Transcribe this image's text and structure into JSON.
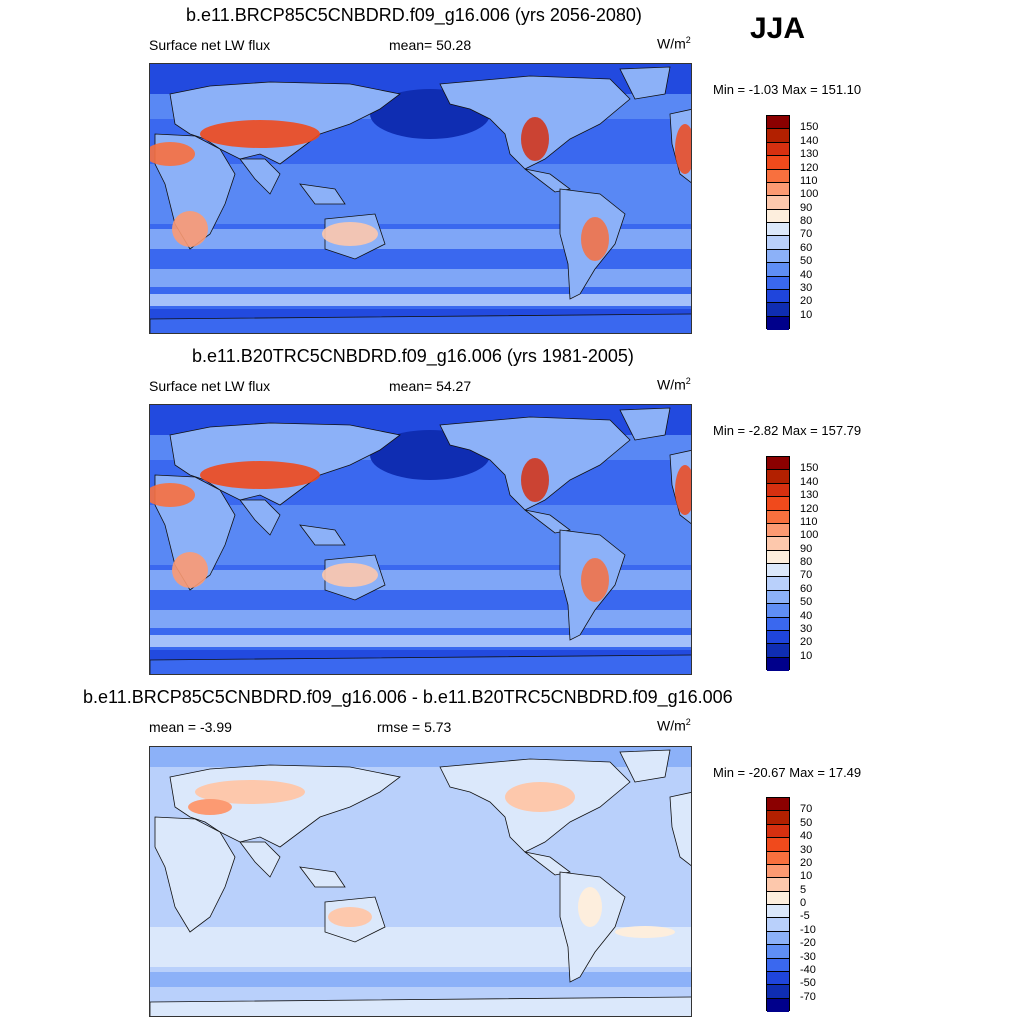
{
  "season": "JJA",
  "panels": [
    {
      "title": "b.e11.BRCP85C5CNBDRD.f09_g16.006 (yrs 2056-2080)",
      "variable": "Surface net LW flux",
      "mean": "mean=  50.28",
      "units": "W/m",
      "units_sup": "2",
      "minmax": "Min =  -1.03 Max = 151.10",
      "colorbar": {
        "labels": [
          "150",
          "140",
          "130",
          "120",
          "110",
          "100",
          "90",
          "80",
          "70",
          "60",
          "50",
          "40",
          "30",
          "20",
          "10"
        ],
        "colors": [
          "#8b0000",
          "#b22000",
          "#d63010",
          "#f04a1c",
          "#f8703e",
          "#fc9a72",
          "#fdc8ac",
          "#fdeedd",
          "#dbe8fb",
          "#b9d0fb",
          "#8cb1f8",
          "#5f8ef5",
          "#3a68ef",
          "#1f45dc",
          "#0f2db2",
          "#00008b"
        ]
      },
      "map_style": "abs"
    },
    {
      "title": "b.e11.B20TRC5CNBDRD.f09_g16.006 (yrs 1981-2005)",
      "variable": "Surface net LW flux",
      "mean": "mean=  54.27",
      "units": "W/m",
      "units_sup": "2",
      "minmax": "Min =  -2.82 Max = 157.79",
      "colorbar": {
        "labels": [
          "150",
          "140",
          "130",
          "120",
          "110",
          "100",
          "90",
          "80",
          "70",
          "60",
          "50",
          "40",
          "30",
          "20",
          "10"
        ],
        "colors": [
          "#8b0000",
          "#b22000",
          "#d63010",
          "#f04a1c",
          "#f8703e",
          "#fc9a72",
          "#fdc8ac",
          "#fdeedd",
          "#dbe8fb",
          "#b9d0fb",
          "#8cb1f8",
          "#5f8ef5",
          "#3a68ef",
          "#1f45dc",
          "#0f2db2",
          "#00008b"
        ]
      },
      "map_style": "abs"
    },
    {
      "title": "b.e11.BRCP85C5CNBDRD.f09_g16.006 - b.e11.B20TRC5CNBDRD.f09_g16.006",
      "mean": "mean =  -3.99",
      "rmse": "rmse =   5.73",
      "units": "W/m",
      "units_sup": "2",
      "minmax": "Min = -20.67 Max =  17.49",
      "colorbar": {
        "labels": [
          "70",
          "50",
          "40",
          "30",
          "20",
          "10",
          "5",
          "0",
          "-5",
          "-10",
          "-20",
          "-30",
          "-40",
          "-50",
          "-70"
        ],
        "colors": [
          "#8b0000",
          "#b22000",
          "#d63010",
          "#f04a1c",
          "#f8703e",
          "#fc9a72",
          "#fdc8ac",
          "#fdeedd",
          "#dbe8fb",
          "#b9d0fb",
          "#8cb1f8",
          "#5f8ef5",
          "#3a68ef",
          "#1f45dc",
          "#0f2db2",
          "#00008b"
        ]
      },
      "map_style": "diff"
    }
  ]
}
